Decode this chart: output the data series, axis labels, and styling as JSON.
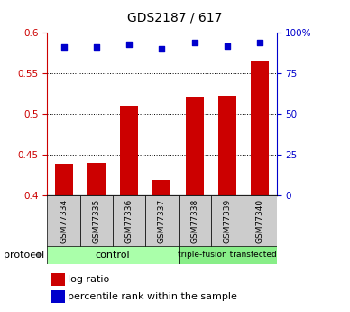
{
  "title": "GDS2187 / 617",
  "samples": [
    "GSM77334",
    "GSM77335",
    "GSM77336",
    "GSM77337",
    "GSM77338",
    "GSM77339",
    "GSM77340"
  ],
  "log_ratio": [
    0.439,
    0.44,
    0.51,
    0.418,
    0.521,
    0.522,
    0.565
  ],
  "percentile_rank": [
    91,
    91,
    93,
    90,
    94,
    92,
    94
  ],
  "ylim_left": [
    0.4,
    0.6
  ],
  "ylim_right": [
    0,
    100
  ],
  "yticks_left": [
    0.4,
    0.45,
    0.5,
    0.55,
    0.6
  ],
  "yticks_right": [
    0,
    25,
    50,
    75,
    100
  ],
  "bar_color": "#cc0000",
  "dot_color": "#0000cc",
  "group_labels": [
    "control",
    "triple-fusion transfected"
  ],
  "group_sizes": [
    4,
    3
  ],
  "group_colors": [
    "#aaffaa",
    "#88ee88"
  ],
  "protocol_label": "protocol",
  "left_axis_color": "#cc0000",
  "right_axis_color": "#0000cc",
  "bar_width": 0.55,
  "legend_items": [
    "log ratio",
    "percentile rank within the sample"
  ],
  "sample_box_color": "#cccccc",
  "title_fontsize": 10,
  "tick_fontsize": 7.5,
  "label_fontsize": 6.5,
  "legend_fontsize": 8,
  "protocol_fontsize": 8
}
